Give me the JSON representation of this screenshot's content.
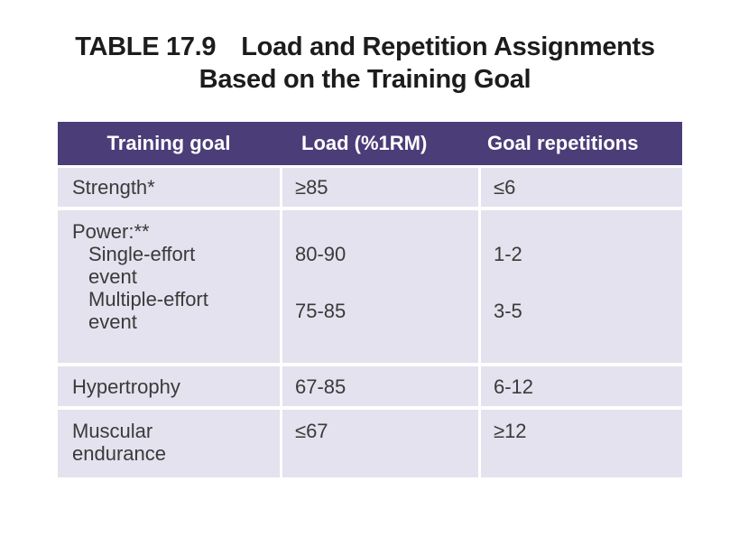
{
  "caption": {
    "table_number": "TABLE 17.9",
    "title_line1": "Load and Repetition Assignments",
    "title_line2": "Based on the Training Goal"
  },
  "table": {
    "headers": [
      "Training goal",
      "Load (%1RM)",
      "Goal repetitions"
    ],
    "rows": {
      "strength": {
        "goal": "Strength*",
        "load": "≥85",
        "reps": "≤6"
      },
      "power": {
        "goal": "Power:**",
        "single": {
          "goal": "Single-effort event",
          "goal_line1": "Single-effort",
          "goal_line2": "event",
          "load": "80-90",
          "reps": "1-2"
        },
        "multiple": {
          "goal": "Multiple-effort event",
          "goal_line1": "Multiple-effort",
          "goal_line2": "event",
          "load": "75-85",
          "reps": "3-5"
        }
      },
      "hypertrophy": {
        "goal": "Hypertrophy",
        "load": "67-85",
        "reps": "6-12"
      },
      "endurance": {
        "goal_line1": "Muscular",
        "goal_line2": "endurance",
        "load": "≤67",
        "reps": "≥12"
      }
    }
  },
  "colors": {
    "header_bg": "#4a3d78",
    "cell_bg": "#e3e2ee"
  }
}
